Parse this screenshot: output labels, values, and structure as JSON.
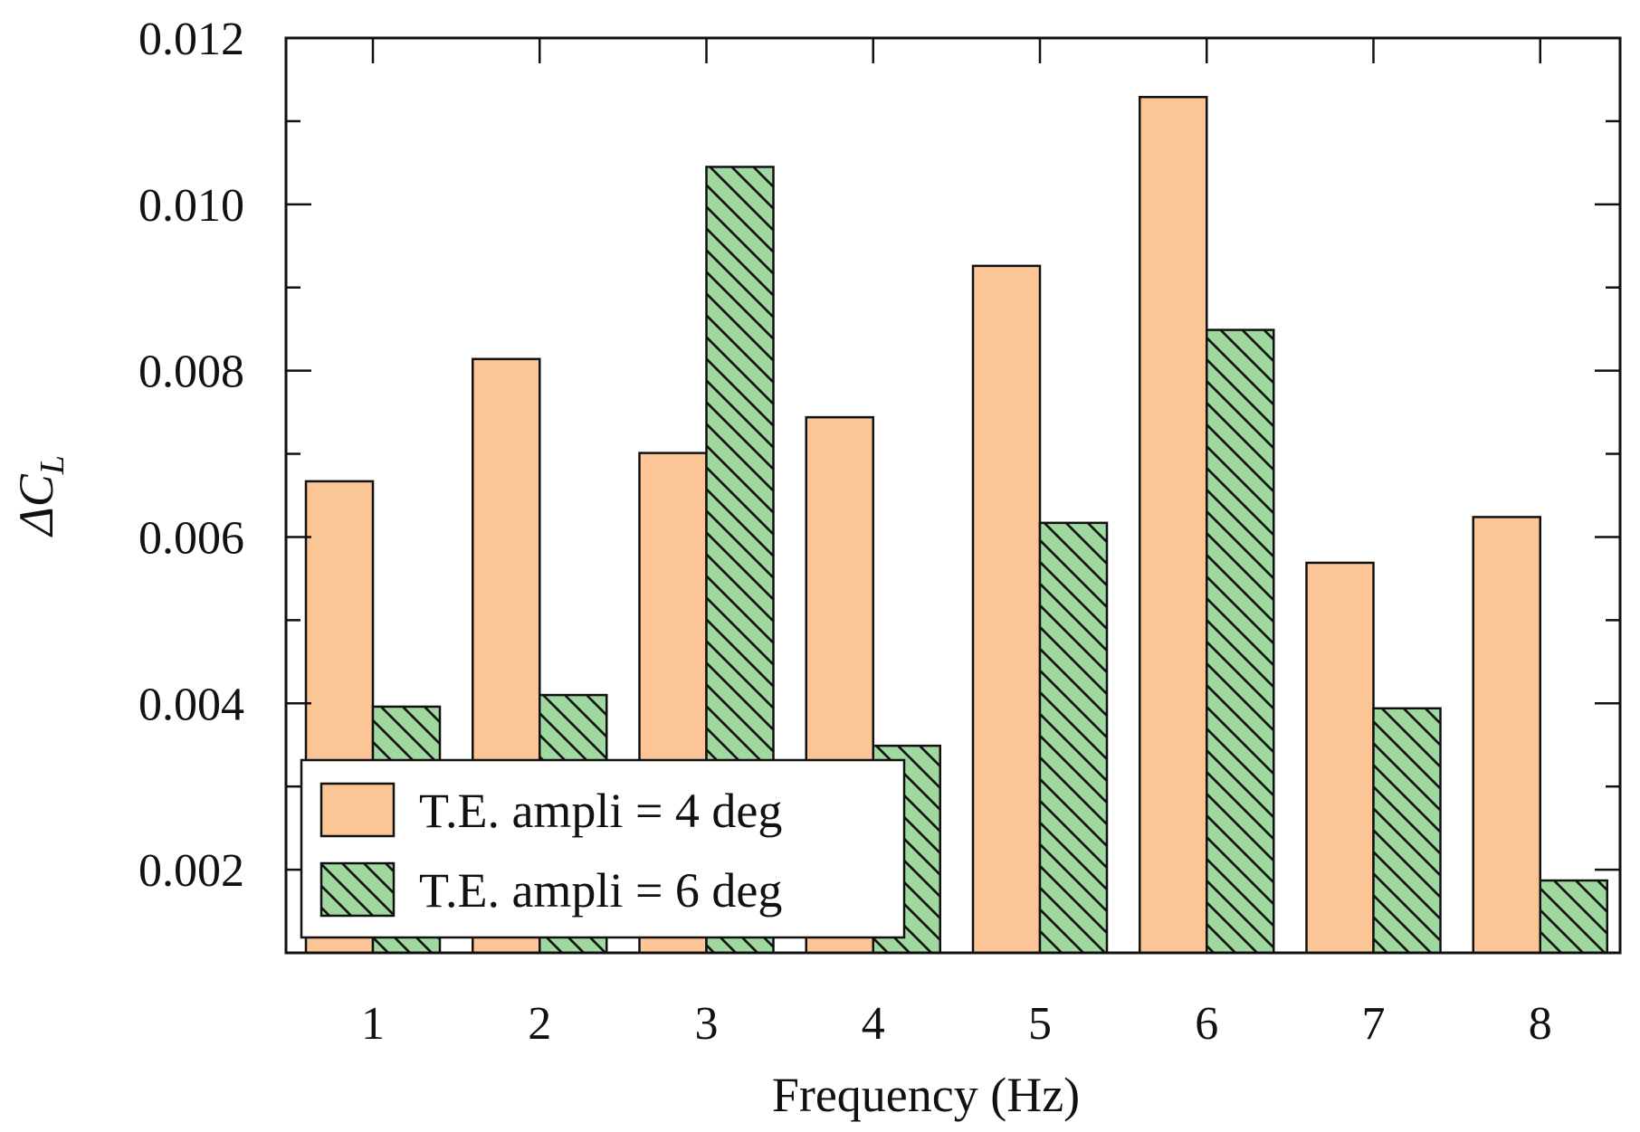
{
  "chart_data": {
    "type": "bar",
    "title": "",
    "xlabel": "Frequency (Hz)",
    "ylabel_symbol": "ΔC",
    "ylabel_subscript": "L",
    "categories": [
      "1",
      "2",
      "3",
      "4",
      "5",
      "6",
      "7",
      "8"
    ],
    "series": [
      {
        "name": "T.E. ampli = 4 deg",
        "color": "#fbc596",
        "pattern": "none",
        "values": [
          0.00667,
          0.00814,
          0.00701,
          0.00744,
          0.00926,
          0.01129,
          0.00569,
          0.00624
        ]
      },
      {
        "name": "T.E. ampli = 6 deg",
        "color": "#a0d9a0",
        "pattern": "diagonal-hatch",
        "values": [
          0.00396,
          0.0041,
          0.01045,
          0.00349,
          0.00617,
          0.00849,
          0.00394,
          0.00187
        ]
      }
    ],
    "ylim": [
      0.001,
      0.012
    ],
    "yticks": [
      "0.002",
      "0.004",
      "0.006",
      "0.008",
      "0.010",
      "0.012"
    ],
    "ytick_values": [
      0.002,
      0.004,
      0.006,
      0.008,
      0.01,
      0.012
    ],
    "grid": false,
    "legend_position": "bottom-left"
  }
}
